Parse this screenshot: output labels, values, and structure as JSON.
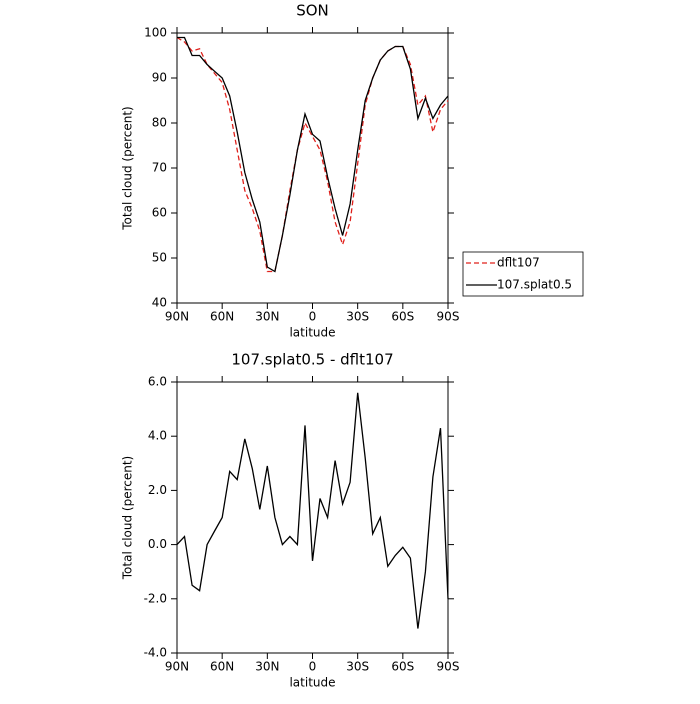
{
  "chart_data": [
    {
      "type": "line",
      "title": "SON",
      "xlabel": "latitude",
      "ylabel": "Total cloud (percent)",
      "legend": "right",
      "x": [
        90,
        85,
        80,
        75,
        70,
        65,
        60,
        55,
        50,
        45,
        40,
        35,
        30,
        25,
        20,
        15,
        10,
        5,
        0,
        -5,
        -10,
        -15,
        -20,
        -25,
        -30,
        -35,
        -40,
        -45,
        -50,
        -55,
        -60,
        -65,
        -70,
        -75,
        -80,
        -85,
        -90
      ],
      "xlim": [
        90,
        -90
      ],
      "xticks": [
        {
          "value": 90,
          "label": "90N"
        },
        {
          "value": 60,
          "label": "60N"
        },
        {
          "value": 30,
          "label": "30N"
        },
        0,
        {
          "value": -30,
          "label": "30S"
        },
        {
          "value": -60,
          "label": "60S"
        },
        {
          "value": -90,
          "label": "90S"
        }
      ],
      "ylim": [
        40,
        100
      ],
      "yticks": [
        40,
        50,
        60,
        70,
        80,
        90,
        100
      ],
      "series": [
        {
          "name": "dflt107",
          "color": "#e0201b",
          "linestyle": "dashed",
          "values": [
            99,
            98,
            96,
            96.5,
            93,
            91,
            89,
            83,
            74,
            65,
            61,
            56,
            47,
            47,
            55,
            65,
            74,
            80,
            77,
            74,
            67,
            58,
            53,
            58,
            71,
            84,
            90,
            94,
            96,
            97,
            97,
            93,
            84,
            86,
            78,
            83,
            85
          ]
        },
        {
          "name": "107.splat0.5",
          "color": "#000000",
          "linestyle": "solid",
          "values": [
            99,
            99,
            95,
            95,
            93,
            91.5,
            90,
            86,
            78,
            69,
            63,
            58,
            48,
            47,
            55,
            64,
            74,
            82,
            77.5,
            76,
            68,
            61,
            55,
            62,
            74,
            85,
            90,
            94,
            96,
            97,
            97,
            92,
            81,
            85.5,
            81,
            84,
            86
          ]
        }
      ]
    },
    {
      "type": "line",
      "title": "107.splat0.5 - dflt107",
      "xlabel": "latitude",
      "ylabel": "Total cloud (percent)",
      "x": [
        90,
        85,
        80,
        75,
        70,
        65,
        60,
        55,
        50,
        45,
        40,
        35,
        30,
        25,
        20,
        15,
        10,
        5,
        0,
        -5,
        -10,
        -15,
        -20,
        -25,
        -30,
        -35,
        -40,
        -45,
        -50,
        -55,
        -60,
        -65,
        -70,
        -75,
        -80,
        -85,
        -90
      ],
      "xlim": [
        90,
        -90
      ],
      "xticks": [
        {
          "value": 90,
          "label": "90N"
        },
        {
          "value": 60,
          "label": "60N"
        },
        {
          "value": 30,
          "label": "30N"
        },
        0,
        {
          "value": -30,
          "label": "30S"
        },
        {
          "value": -60,
          "label": "60S"
        },
        {
          "value": -90,
          "label": "90S"
        }
      ],
      "ylim": [
        -4,
        6
      ],
      "yticks": [
        {
          "value": -4,
          "label": "-4.0"
        },
        {
          "value": -2,
          "label": "-2.0"
        },
        {
          "value": 0,
          "label": "0.0"
        },
        {
          "value": 2,
          "label": "2.0"
        },
        {
          "value": 4,
          "label": "4.0"
        },
        {
          "value": 6,
          "label": "6.0"
        }
      ],
      "series": [
        {
          "color": "#000000",
          "linestyle": "solid",
          "values": [
            0,
            0.3,
            -1.5,
            -1.7,
            0,
            0.5,
            1,
            2.7,
            2.4,
            3.9,
            2.8,
            1.3,
            2.9,
            1.0,
            0,
            0.3,
            0,
            4.4,
            -0.6,
            1.7,
            1.0,
            3.1,
            1.5,
            2.3,
            5.6,
            3.2,
            0.4,
            1.0,
            -0.8,
            -0.4,
            -0.1,
            -0.5,
            -3.1,
            -1.0,
            2.5,
            4.3,
            -2.0
          ]
        }
      ]
    }
  ]
}
